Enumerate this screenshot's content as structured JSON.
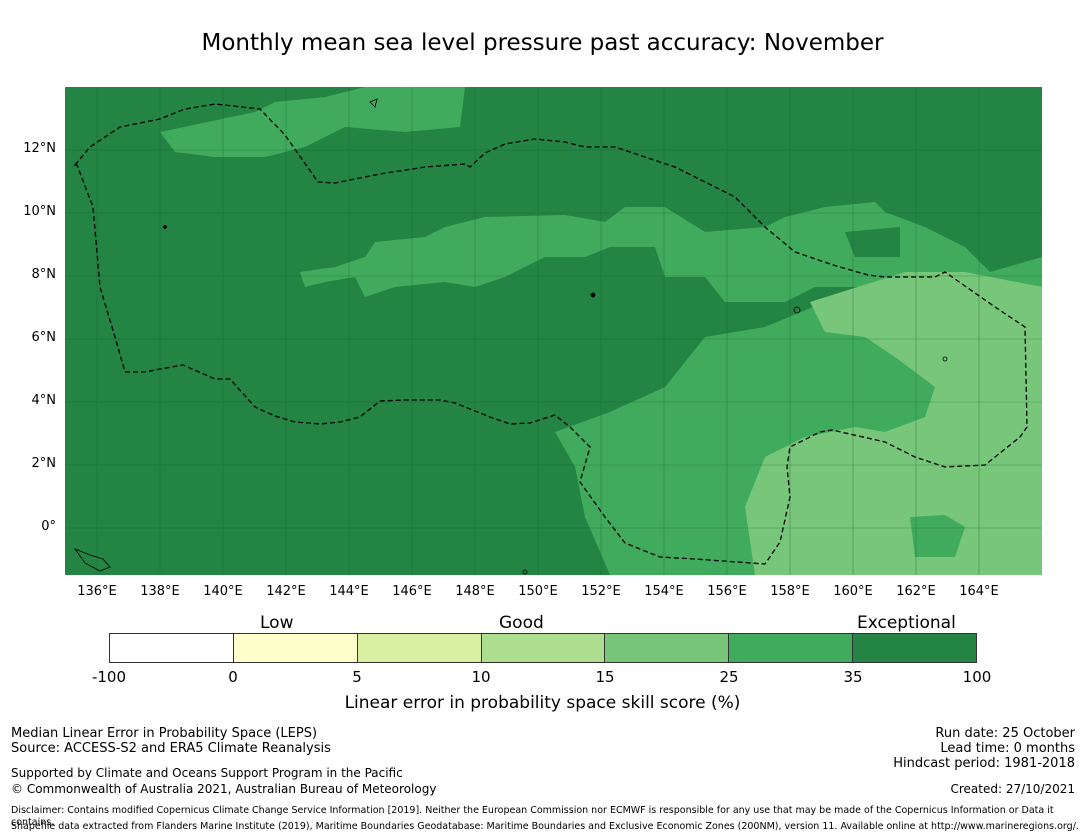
{
  "title": "Monthly mean sea level pressure past accuracy: November",
  "map": {
    "lon_labels": [
      "136°E",
      "138°E",
      "140°E",
      "142°E",
      "144°E",
      "146°E",
      "148°E",
      "150°E",
      "152°E",
      "154°E",
      "156°E",
      "158°E",
      "160°E",
      "162°E",
      "164°E"
    ],
    "lat_labels": [
      "12°N",
      "10°N",
      "8°N",
      "6°N",
      "4°N",
      "2°N",
      "0°"
    ],
    "colors": {
      "exceptional": "#238443",
      "high": "#41ab5d",
      "mid": "#78c679",
      "boundary": "#000000"
    }
  },
  "colorbar": {
    "categories": [
      "Low",
      "Good",
      "Exceptional"
    ],
    "ticks": [
      "-100",
      "0",
      "5",
      "10",
      "15",
      "25",
      "35",
      "100"
    ],
    "colors": [
      "#ffffff",
      "#ffffcc",
      "#d9f0a3",
      "#addd8e",
      "#78c679",
      "#41ab5d",
      "#238443"
    ],
    "label": "Linear error in probability space skill score (%)"
  },
  "footer": {
    "left": [
      "Median Linear Error in Probability Space (LEPS)",
      "Source: ACCESS-S2 and ERA5 Climate Reanalysis"
    ],
    "support": [
      "Supported by Climate and Oceans Support Program in the Pacific",
      "© Commonwealth of Australia 2021, Australian Bureau of Meteorology"
    ],
    "right": [
      "Run date: 25 October",
      "Lead time: 0 months",
      "Hindcast period: 1981-2018"
    ],
    "created": "Created: 27/10/2021",
    "disclaimer": [
      "Disclaimer: Contains modified Copernicus Climate Change Service Information [2019]. Neither the European Commission nor ECMWF is responsible for any use that may be made of the Copernicus Information or Data it contains.",
      "Shapefile data extracted from Flanders Marine Institute (2019), Maritime Boundaries Geodatabase: Maritime Boundaries and Exclusive Economic Zones (200NM), version 11. Available online at http://www.marineregions.org/."
    ]
  }
}
